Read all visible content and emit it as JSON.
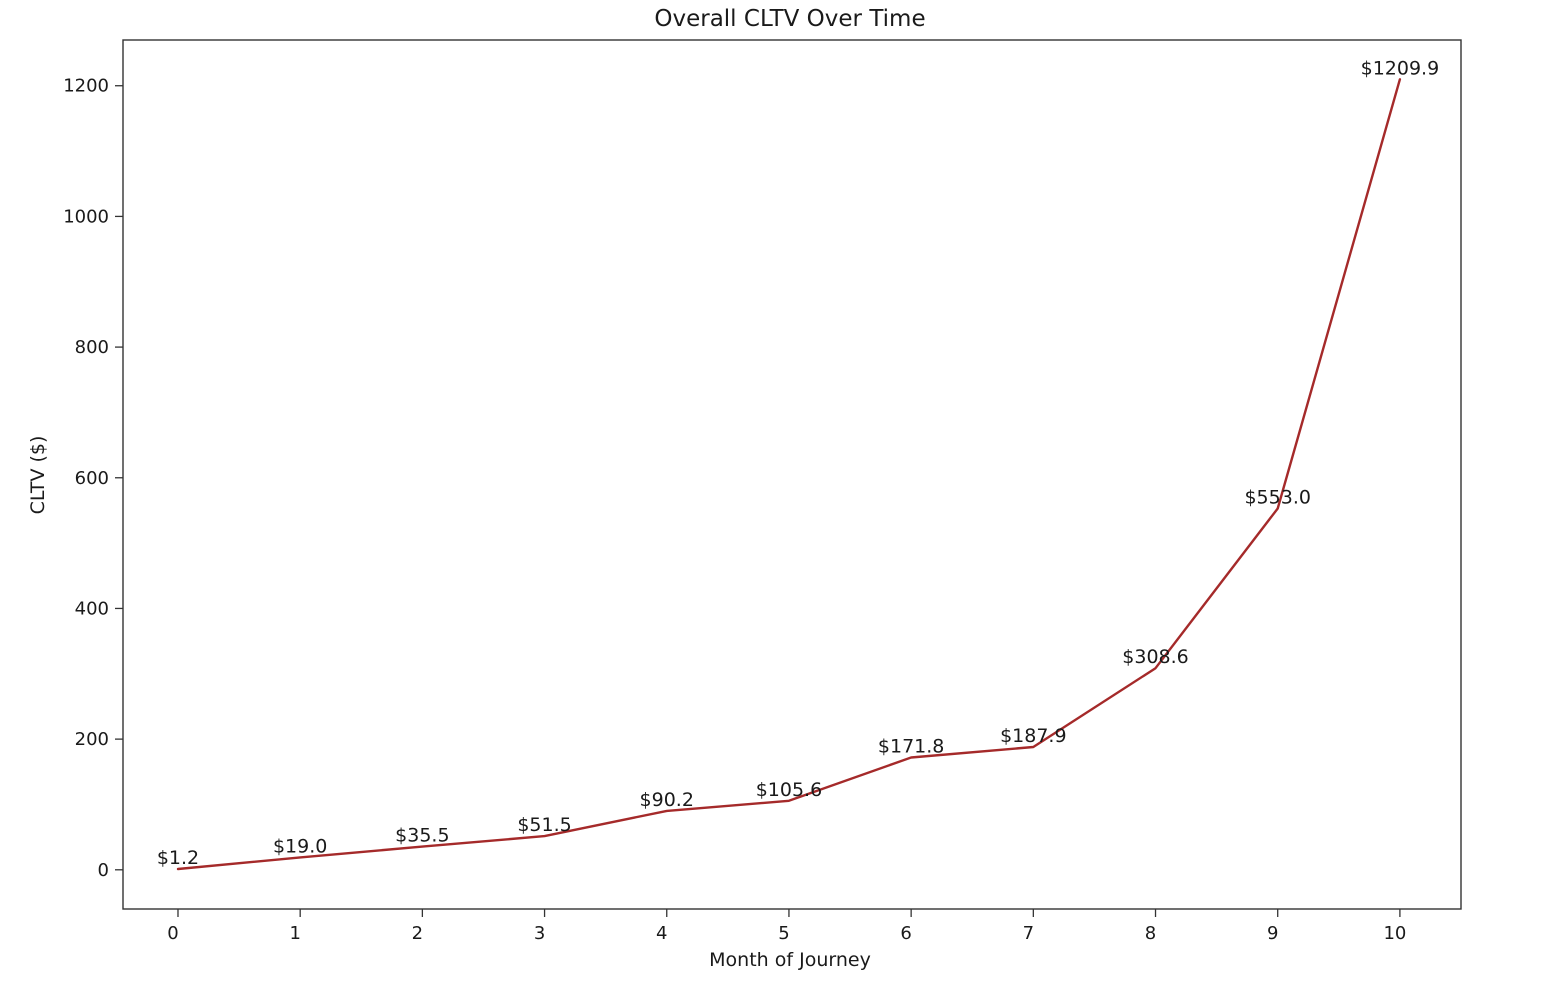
{
  "chart_data": {
    "type": "line",
    "title": "Overall CLTV Over Time",
    "xlabel": "Month of Journey",
    "ylabel": "CLTV ($)",
    "x": [
      0,
      1,
      2,
      3,
      4,
      5,
      6,
      7,
      8,
      9,
      10
    ],
    "xticks": [
      "0",
      "1",
      "2",
      "3",
      "4",
      "5",
      "6",
      "7",
      "8",
      "9",
      "10"
    ],
    "yticks": [
      "0",
      "200",
      "400",
      "600",
      "800",
      "1000",
      "1200"
    ],
    "ytick_values": [
      0,
      200,
      400,
      600,
      800,
      1000,
      1200
    ],
    "xlim": [
      -0.45,
      10.5
    ],
    "ylim": [
      -60,
      1270
    ],
    "series": [
      {
        "values": [
          1.2,
          19.0,
          35.5,
          51.5,
          90.2,
          105.6,
          171.8,
          187.9,
          308.6,
          553.0,
          1209.9
        ],
        "labels": [
          "$1.2",
          "$19.0",
          "$35.5",
          "$51.5",
          "$90.2",
          "$105.6",
          "$171.8",
          "$187.9",
          "$308.6",
          "$553.0",
          "$1209.9"
        ],
        "color": "#a52a2a"
      }
    ],
    "grid": false,
    "legend": false
  }
}
